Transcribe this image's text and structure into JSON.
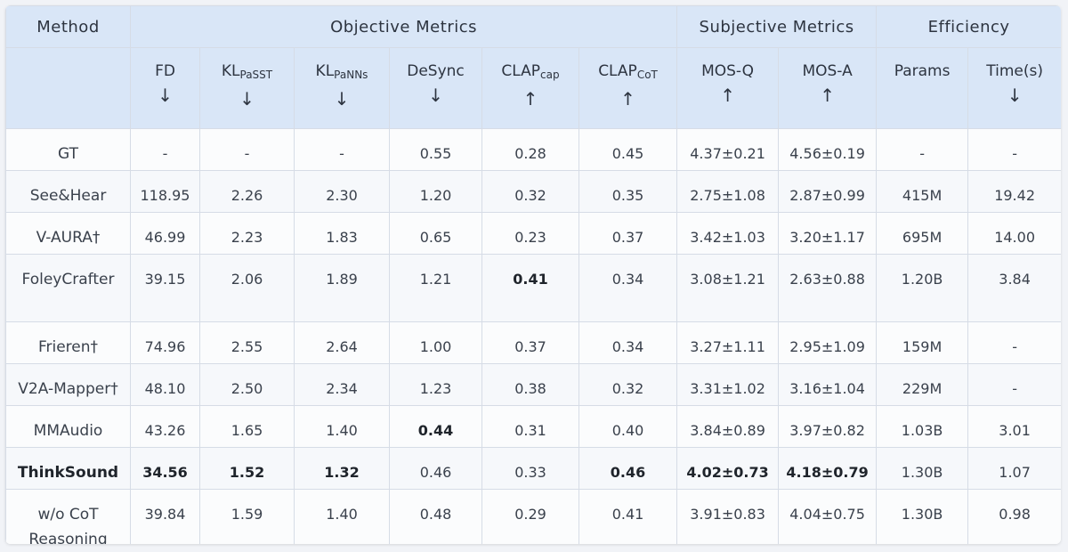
{
  "header": {
    "method": "Method",
    "objective": "Objective Metrics",
    "subjective": "Subjective Metrics",
    "efficiency": "Efficiency"
  },
  "metrics": {
    "fd": "FD",
    "kl1_base": "KL",
    "kl1_sub": "PaSST",
    "kl2_base": "KL",
    "kl2_sub": "PaNNs",
    "desync": "DeSync",
    "clap1_base": "CLAP",
    "clap1_sub": "cap",
    "clap2_base": "CLAP",
    "clap2_sub": "CoT",
    "mosq": "MOS-Q",
    "mosa": "MOS-A",
    "params": "Params",
    "time": "Time(s)",
    "down": "↓",
    "up": "↑"
  },
  "rows": [
    {
      "method": "GT",
      "fd": "-",
      "kl_passt": "-",
      "kl_panns": "-",
      "desync": "0.55",
      "clap_cap": "0.28",
      "clap_cot": "0.45",
      "mos_q": "4.37±0.21",
      "mos_a": "4.56±0.19",
      "params": "-",
      "time": "-"
    },
    {
      "method": "See&Hear",
      "fd": "118.95",
      "kl_passt": "2.26",
      "kl_panns": "2.30",
      "desync": "1.20",
      "clap_cap": "0.32",
      "clap_cot": "0.35",
      "mos_q": "2.75±1.08",
      "mos_a": "2.87±0.99",
      "params": "415M",
      "time": "19.42"
    },
    {
      "method": "V-AURA†",
      "fd": "46.99",
      "kl_passt": "2.23",
      "kl_panns": "1.83",
      "desync": "0.65",
      "clap_cap": "0.23",
      "clap_cot": "0.37",
      "mos_q": "3.42±1.03",
      "mos_a": "3.20±1.17",
      "params": "695M",
      "time": "14.00"
    },
    {
      "method": "FoleyCrafter",
      "fd": "39.15",
      "kl_passt": "2.06",
      "kl_panns": "1.89",
      "desync": "1.21",
      "clap_cap": "0.41",
      "clap_cot": "0.34",
      "mos_q": "3.08±1.21",
      "mos_a": "2.63±0.88",
      "params": "1.20B",
      "time": "3.84"
    },
    {
      "method": "Frieren†",
      "fd": "74.96",
      "kl_passt": "2.55",
      "kl_panns": "2.64",
      "desync": "1.00",
      "clap_cap": "0.37",
      "clap_cot": "0.34",
      "mos_q": "3.27±1.11",
      "mos_a": "2.95±1.09",
      "params": "159M",
      "time": "-"
    },
    {
      "method": "V2A-Mapper†",
      "fd": "48.10",
      "kl_passt": "2.50",
      "kl_panns": "2.34",
      "desync": "1.23",
      "clap_cap": "0.38",
      "clap_cot": "0.32",
      "mos_q": "3.31±1.02",
      "mos_a": "3.16±1.04",
      "params": "229M",
      "time": "-"
    },
    {
      "method": "MMAudio",
      "fd": "43.26",
      "kl_passt": "1.65",
      "kl_panns": "1.40",
      "desync": "0.44",
      "clap_cap": "0.31",
      "clap_cot": "0.40",
      "mos_q": "3.84±0.89",
      "mos_a": "3.97±0.82",
      "params": "1.03B",
      "time": "3.01"
    },
    {
      "method": "ThinkSound",
      "fd": "34.56",
      "kl_passt": "1.52",
      "kl_panns": "1.32",
      "desync": "0.46",
      "clap_cap": "0.33",
      "clap_cot": "0.46",
      "mos_q": "4.02±0.73",
      "mos_a": "4.18±0.79",
      "params": "1.30B",
      "time": "1.07"
    },
    {
      "method": "w/o CoT Reasoning",
      "fd": "39.84",
      "kl_passt": "1.59",
      "kl_panns": "1.40",
      "desync": "0.48",
      "clap_cap": "0.29",
      "clap_cot": "0.41",
      "mos_q": "3.91±0.83",
      "mos_a": "4.04±0.75",
      "params": "1.30B",
      "time": "0.98"
    }
  ],
  "bold_cells": [
    "3.clap_cap",
    "6.desync",
    "7.fd",
    "7.kl_passt",
    "7.kl_panns",
    "7.clap_cot",
    "7.mos_q",
    "7.mos_a"
  ],
  "colors": {
    "header_bg": "#d9e6f7",
    "border": "#d6dce6",
    "text": "#333a45"
  }
}
